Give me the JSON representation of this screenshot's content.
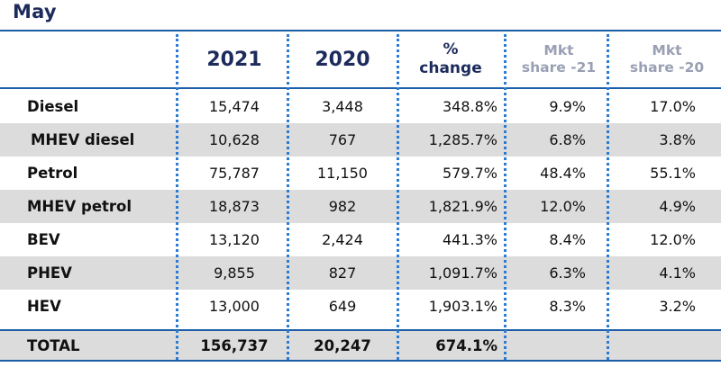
{
  "title": "May",
  "headers": {
    "y2021": "2021",
    "y2020": "2020",
    "pct_line1": "%",
    "pct_line2": "change",
    "mkt21_line1": "Mkt",
    "mkt21_line2": "share -21",
    "mkt20_line1": "Mkt",
    "mkt20_line2": "share -20"
  },
  "rows": [
    {
      "label": "Diesel",
      "y2021": "15,474",
      "y2020": "3,448",
      "pct": "348.8%",
      "mkt21": "9.9%",
      "mkt20": "17.0%"
    },
    {
      "label": "MHEV diesel",
      "y2021": "10,628",
      "y2020": "767",
      "pct": "1,285.7%",
      "mkt21": "6.8%",
      "mkt20": "3.8%"
    },
    {
      "label": "Petrol",
      "y2021": "75,787",
      "y2020": "11,150",
      "pct": "579.7%",
      "mkt21": "48.4%",
      "mkt20": "55.1%"
    },
    {
      "label": "MHEV petrol",
      "y2021": "18,873",
      "y2020": "982",
      "pct": "1,821.9%",
      "mkt21": "12.0%",
      "mkt20": "4.9%"
    },
    {
      "label": "BEV",
      "y2021": "13,120",
      "y2020": "2,424",
      "pct": "441.3%",
      "mkt21": "8.4%",
      "mkt20": "12.0%"
    },
    {
      "label": "PHEV",
      "y2021": "9,855",
      "y2020": "827",
      "pct": "1,091.7%",
      "mkt21": "6.3%",
      "mkt20": "4.1%"
    },
    {
      "label": "HEV",
      "y2021": "13,000",
      "y2020": "649",
      "pct": "1,903.1%",
      "mkt21": "8.3%",
      "mkt20": "3.2%"
    }
  ],
  "total": {
    "label": "TOTAL",
    "y2021": "156,737",
    "y2020": "20,247",
    "pct": "674.1%",
    "mkt21": "",
    "mkt20": ""
  },
  "colors": {
    "accent": "#1d5ea8",
    "heading": "#1c2b5c",
    "muted_heading": "#9aa0b4",
    "shade": "#dcdcdc"
  }
}
